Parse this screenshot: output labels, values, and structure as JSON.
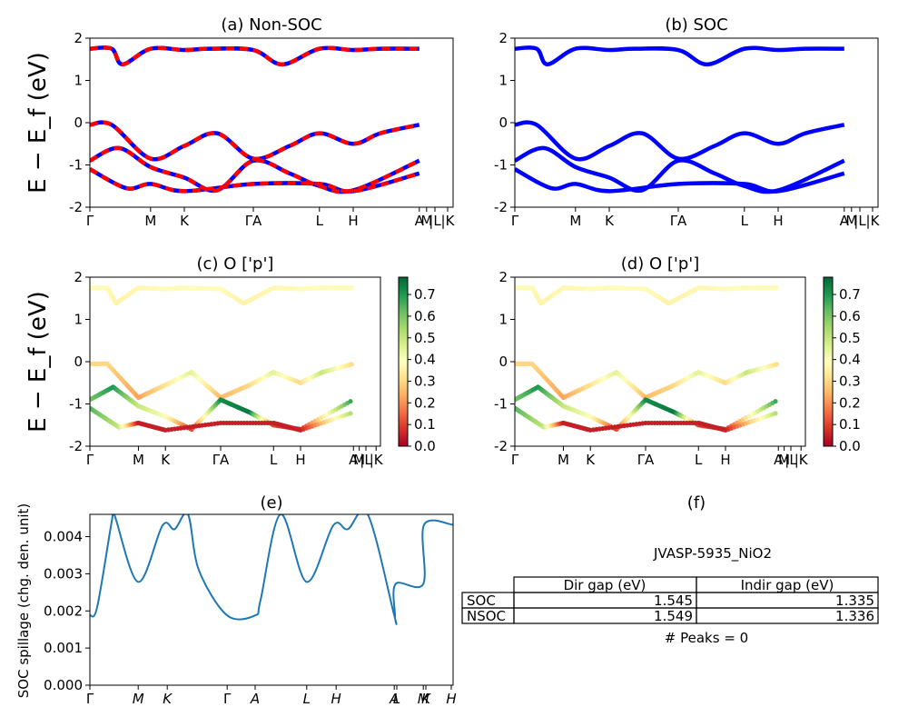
{
  "chart_data": [
    {
      "panel": "a",
      "type": "line",
      "title": "(a) Non-SOC",
      "ylabel": "E − E_f (eV)",
      "ylim": [
        -2,
        2
      ],
      "yticks": [
        -2,
        -1,
        0,
        1,
        2
      ],
      "kpath_labels": [
        "Γ",
        "M",
        "K",
        "ΓA",
        "L",
        "H",
        "A",
        "M",
        "|L",
        "|K"
      ],
      "kpath_positions": [
        0,
        0.167,
        0.26,
        0.45,
        0.632,
        0.725,
        0.907,
        0.927,
        0.95,
        0.985
      ],
      "series": [
        {
          "color": "#0000ff",
          "style": "solid",
          "values": [
            {
              "x": [
                0,
                0.06,
                0.09,
                0.167,
                0.26,
                0.33,
                0.45,
                0.53,
                0.632,
                0.725,
                0.8,
                0.907
              ],
              "y": [
                1.75,
                1.75,
                1.38,
                1.75,
                1.72,
                1.75,
                1.72,
                1.38,
                1.75,
                1.72,
                1.75,
                1.75
              ]
            },
            {
              "x": [
                0,
                0.06,
                0.167,
                0.26,
                0.35,
                0.45,
                0.55,
                0.632,
                0.725,
                0.8,
                0.907
              ],
              "y": [
                -0.05,
                -0.05,
                -0.85,
                -0.55,
                -0.25,
                -0.85,
                -0.55,
                -0.25,
                -0.5,
                -0.25,
                -0.05
              ]
            },
            {
              "x": [
                0,
                0.08,
                0.167,
                0.26,
                0.35,
                0.45,
                0.55,
                0.632,
                0.725,
                0.907
              ],
              "y": [
                -0.9,
                -0.6,
                -1.05,
                -1.3,
                -1.6,
                -0.9,
                -1.2,
                -1.5,
                -1.6,
                -0.9
              ]
            },
            {
              "x": [
                0,
                0.1,
                0.167,
                0.26,
                0.45,
                0.632,
                0.725,
                0.907
              ],
              "y": [
                -1.1,
                -1.55,
                -1.45,
                -1.62,
                -1.45,
                -1.45,
                -1.62,
                -1.2
              ]
            }
          ]
        },
        {
          "color": "#ff0000",
          "style": "dashed",
          "values": [
            {
              "x": [
                0,
                0.06,
                0.09,
                0.167,
                0.26,
                0.33,
                0.45,
                0.53,
                0.632,
                0.725,
                0.8,
                0.907
              ],
              "y": [
                1.75,
                1.75,
                1.38,
                1.75,
                1.72,
                1.75,
                1.72,
                1.38,
                1.75,
                1.72,
                1.75,
                1.75
              ]
            },
            {
              "x": [
                0,
                0.06,
                0.167,
                0.26,
                0.35,
                0.45,
                0.55,
                0.632,
                0.725,
                0.8,
                0.907
              ],
              "y": [
                -0.05,
                -0.05,
                -0.85,
                -0.55,
                -0.25,
                -0.85,
                -0.55,
                -0.25,
                -0.5,
                -0.25,
                -0.05
              ]
            },
            {
              "x": [
                0,
                0.08,
                0.167,
                0.26,
                0.35,
                0.45,
                0.55,
                0.632,
                0.725,
                0.907
              ],
              "y": [
                -0.9,
                -0.6,
                -1.05,
                -1.3,
                -1.6,
                -0.9,
                -1.2,
                -1.5,
                -1.6,
                -0.9
              ]
            },
            {
              "x": [
                0,
                0.1,
                0.167,
                0.26,
                0.45,
                0.632,
                0.725,
                0.907
              ],
              "y": [
                -1.1,
                -1.55,
                -1.45,
                -1.62,
                -1.45,
                -1.45,
                -1.62,
                -1.2
              ]
            }
          ]
        }
      ]
    },
    {
      "panel": "b",
      "type": "line",
      "title": "(b) SOC",
      "ylim": [
        -2,
        2
      ],
      "yticks": [
        -2,
        -1,
        0,
        1,
        2
      ],
      "kpath_labels": [
        "Γ",
        "M",
        "K",
        "ΓA",
        "L",
        "H",
        "A",
        "M",
        "|L",
        "|K"
      ],
      "kpath_positions": [
        0,
        0.167,
        0.26,
        0.45,
        0.632,
        0.725,
        0.907,
        0.927,
        0.95,
        0.985
      ],
      "series": [
        {
          "color": "#0000ff",
          "style": "solid",
          "values": [
            {
              "x": [
                0,
                0.06,
                0.09,
                0.167,
                0.26,
                0.33,
                0.45,
                0.53,
                0.632,
                0.725,
                0.8,
                0.907
              ],
              "y": [
                1.75,
                1.75,
                1.38,
                1.75,
                1.72,
                1.75,
                1.72,
                1.38,
                1.75,
                1.72,
                1.75,
                1.75
              ]
            },
            {
              "x": [
                0,
                0.06,
                0.167,
                0.26,
                0.35,
                0.45,
                0.55,
                0.632,
                0.725,
                0.8,
                0.907
              ],
              "y": [
                -0.05,
                -0.05,
                -0.85,
                -0.55,
                -0.25,
                -0.85,
                -0.55,
                -0.25,
                -0.5,
                -0.25,
                -0.05
              ]
            },
            {
              "x": [
                0,
                0.08,
                0.167,
                0.26,
                0.35,
                0.45,
                0.55,
                0.632,
                0.725,
                0.907
              ],
              "y": [
                -0.9,
                -0.6,
                -1.05,
                -1.3,
                -1.6,
                -0.9,
                -1.2,
                -1.5,
                -1.6,
                -0.9
              ]
            },
            {
              "x": [
                0,
                0.1,
                0.167,
                0.26,
                0.45,
                0.632,
                0.725,
                0.907
              ],
              "y": [
                -1.1,
                -1.55,
                -1.45,
                -1.62,
                -1.45,
                -1.45,
                -1.62,
                -1.2
              ]
            }
          ]
        }
      ]
    },
    {
      "panel": "c",
      "type": "scatter",
      "title": "(c)  O ['p']",
      "ylabel": "E − E_f (eV)",
      "ylim": [
        -2,
        2
      ],
      "yticks": [
        -2,
        -1,
        0,
        1,
        2
      ],
      "kpath_labels": [
        "Γ",
        "M",
        "K",
        "ΓA",
        "L",
        "H",
        "A",
        "M",
        "|L",
        "|K"
      ],
      "kpath_positions": [
        0,
        0.167,
        0.26,
        0.45,
        0.632,
        0.725,
        0.907,
        0.927,
        0.95,
        0.985
      ],
      "colorbar": {
        "cmap": "RdYlGn",
        "range": [
          0,
          0.78
        ],
        "ticks": [
          "0.0",
          "0.1",
          "0.2",
          "0.3",
          "0.4",
          "0.5",
          "0.6",
          "0.7"
        ]
      },
      "bands": [
        {
          "x": [
            0,
            0.06,
            0.09,
            0.167,
            0.26,
            0.33,
            0.45,
            0.53,
            0.632,
            0.725,
            0.8,
            0.907
          ],
          "y": [
            1.75,
            1.75,
            1.38,
            1.75,
            1.72,
            1.75,
            1.72,
            1.38,
            1.75,
            1.72,
            1.75,
            1.75
          ],
          "weight": [
            0.38,
            0.38,
            0.36,
            0.37,
            0.38,
            0.38,
            0.38,
            0.36,
            0.37,
            0.38,
            0.38,
            0.38
          ]
        },
        {
          "x": [
            0,
            0.06,
            0.167,
            0.26,
            0.35,
            0.45,
            0.55,
            0.632,
            0.725,
            0.8,
            0.907
          ],
          "y": [
            -0.05,
            -0.05,
            -0.85,
            -0.55,
            -0.25,
            -0.85,
            -0.55,
            -0.25,
            -0.5,
            -0.25,
            -0.05
          ],
          "weight": [
            0.3,
            0.3,
            0.22,
            0.32,
            0.45,
            0.25,
            0.3,
            0.45,
            0.3,
            0.5,
            0.3
          ]
        },
        {
          "x": [
            0,
            0.08,
            0.167,
            0.26,
            0.35,
            0.45,
            0.55,
            0.632,
            0.725,
            0.907
          ],
          "y": [
            -0.9,
            -0.6,
            -1.05,
            -1.3,
            -1.6,
            -0.9,
            -1.2,
            -1.5,
            -1.6,
            -0.9
          ],
          "weight": [
            0.6,
            0.7,
            0.5,
            0.4,
            0.1,
            0.72,
            0.75,
            0.1,
            0.08,
            0.7
          ]
        },
        {
          "x": [
            0,
            0.1,
            0.167,
            0.26,
            0.45,
            0.632,
            0.725,
            0.907
          ],
          "y": [
            -1.1,
            -1.55,
            -1.45,
            -1.62,
            -1.45,
            -1.45,
            -1.62,
            -1.2
          ],
          "weight": [
            0.65,
            0.5,
            0.05,
            0.05,
            0.05,
            0.05,
            0.05,
            0.55
          ]
        }
      ]
    },
    {
      "panel": "d",
      "type": "scatter",
      "title": "(d) O ['p']",
      "ylim": [
        -2,
        2
      ],
      "yticks": [
        -2,
        -1,
        0,
        1,
        2
      ],
      "kpath_labels": [
        "Γ",
        "M",
        "K",
        "ΓA",
        "L",
        "H",
        "A",
        "M",
        "|L",
        "|K"
      ],
      "kpath_positions": [
        0,
        0.167,
        0.26,
        0.45,
        0.632,
        0.725,
        0.907,
        0.927,
        0.95,
        0.985
      ],
      "colorbar": {
        "cmap": "RdYlGn",
        "range": [
          0,
          0.78
        ],
        "ticks": [
          "0.0",
          "0.1",
          "0.2",
          "0.3",
          "0.4",
          "0.5",
          "0.6",
          "0.7"
        ]
      },
      "bands": [
        {
          "x": [
            0,
            0.06,
            0.09,
            0.167,
            0.26,
            0.33,
            0.45,
            0.53,
            0.632,
            0.725,
            0.8,
            0.907
          ],
          "y": [
            1.75,
            1.75,
            1.38,
            1.75,
            1.72,
            1.75,
            1.72,
            1.38,
            1.75,
            1.72,
            1.75,
            1.75
          ],
          "weight": [
            0.38,
            0.38,
            0.36,
            0.37,
            0.38,
            0.38,
            0.38,
            0.36,
            0.37,
            0.38,
            0.38,
            0.38
          ]
        },
        {
          "x": [
            0,
            0.06,
            0.167,
            0.26,
            0.35,
            0.45,
            0.55,
            0.632,
            0.725,
            0.8,
            0.907
          ],
          "y": [
            -0.05,
            -0.05,
            -0.85,
            -0.55,
            -0.25,
            -0.85,
            -0.55,
            -0.25,
            -0.5,
            -0.25,
            -0.05
          ],
          "weight": [
            0.3,
            0.3,
            0.22,
            0.32,
            0.45,
            0.25,
            0.3,
            0.45,
            0.3,
            0.5,
            0.3
          ]
        },
        {
          "x": [
            0,
            0.08,
            0.167,
            0.26,
            0.35,
            0.45,
            0.55,
            0.632,
            0.725,
            0.907
          ],
          "y": [
            -0.9,
            -0.6,
            -1.05,
            -1.3,
            -1.6,
            -0.9,
            -1.2,
            -1.5,
            -1.6,
            -0.9
          ],
          "weight": [
            0.6,
            0.7,
            0.5,
            0.4,
            0.1,
            0.72,
            0.75,
            0.1,
            0.08,
            0.7
          ]
        },
        {
          "x": [
            0,
            0.1,
            0.167,
            0.26,
            0.45,
            0.632,
            0.725,
            0.907
          ],
          "y": [
            -1.1,
            -1.55,
            -1.45,
            -1.62,
            -1.45,
            -1.45,
            -1.62,
            -1.2
          ],
          "weight": [
            0.65,
            0.5,
            0.05,
            0.05,
            0.05,
            0.05,
            0.05,
            0.55
          ]
        }
      ]
    },
    {
      "panel": "e",
      "type": "line",
      "title": "(e)",
      "ylabel": "SOC spillage (chg. den. unit)",
      "ylim": [
        0,
        0.0046
      ],
      "yticks": [
        "0.000",
        "0.001",
        "0.002",
        "0.003",
        "0.004"
      ],
      "kpath_labels": [
        "Γ",
        "M",
        "K",
        "Γ",
        "A",
        "L",
        "H",
        "A",
        "L",
        "M",
        "K",
        "H"
      ],
      "kpath_positions": [
        0,
        0.133,
        0.213,
        0.378,
        0.455,
        0.597,
        0.678,
        0.838,
        0.845,
        0.918,
        0.925,
        0.995
      ],
      "series": [
        {
          "color": "#1f77b4",
          "x": [
            0,
            0.02,
            0.06,
            0.067,
            0.133,
            0.2,
            0.233,
            0.27,
            0.3,
            0.378,
            0.455,
            0.47,
            0.525,
            0.597,
            0.67,
            0.71,
            0.765,
            0.838,
            0.84,
            0.842,
            0.918,
            0.92,
            1.0
          ],
          "y": [
            0.00188,
            0.0021,
            0.0044,
            0.0046,
            0.00278,
            0.0043,
            0.0042,
            0.0046,
            0.0031,
            0.00188,
            0.00188,
            0.0023,
            0.0046,
            0.00278,
            0.0043,
            0.0042,
            0.0046,
            0.00188,
            0.00188,
            0.00273,
            0.00273,
            0.00432,
            0.00432
          ]
        }
      ]
    },
    {
      "panel": "f",
      "type": "table",
      "title": "(f)",
      "subtitle": "JVASP-5935_NiO2",
      "columns": [
        "Dir gap (eV)",
        "Indir gap (eV)"
      ],
      "rows": [
        {
          "label": "SOC",
          "values": [
            "1.545",
            "1.335"
          ]
        },
        {
          "label": "NSOC",
          "values": [
            "1.549",
            "1.336"
          ]
        }
      ],
      "footer": "# Peaks = 0"
    }
  ]
}
